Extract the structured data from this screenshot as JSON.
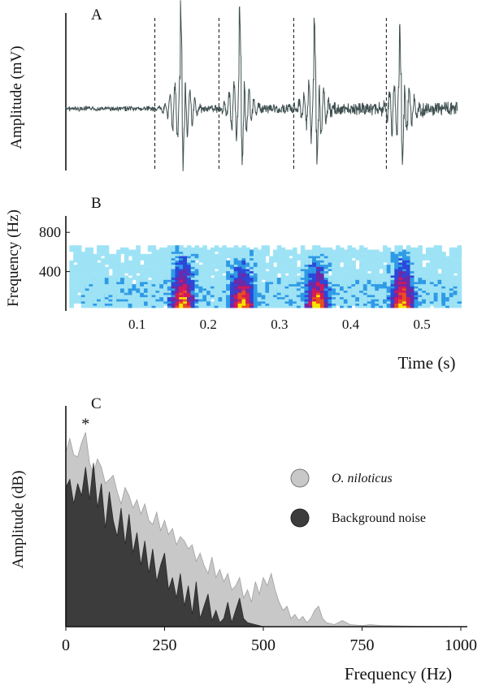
{
  "chart_data": [
    {
      "panel": "A",
      "type": "line",
      "ylabel": "Amplitude  (mV)",
      "x_range": [
        0.0,
        0.55
      ],
      "pulse_times": [
        0.162,
        0.245,
        0.35,
        0.47
      ],
      "dashed_marker_times": [
        0.125,
        0.215,
        0.32,
        0.45
      ],
      "series": [
        {
          "values_description_free": true,
          "color": "#3f4f4f"
        }
      ]
    },
    {
      "panel": "B",
      "type": "heatmap",
      "ylabel": "Frequency (Hz)",
      "yticks": [
        "400",
        "800"
      ],
      "ytick_values": [
        400,
        800
      ],
      "ylim": [
        0,
        1000
      ],
      "xticks": [
        "0.1",
        "0.2",
        "0.3",
        "0.4",
        "0.5"
      ],
      "xtick_values": [
        0.1,
        0.2,
        0.3,
        0.4,
        0.5
      ],
      "xlim": [
        0.0,
        0.55
      ],
      "xlabel": "Time (s)",
      "energy_bursts": [
        {
          "time": 0.162,
          "max_freq": 560
        },
        {
          "time": 0.245,
          "max_freq": 500
        },
        {
          "time": 0.35,
          "max_freq": 520
        },
        {
          "time": 0.47,
          "max_freq": 540
        }
      ]
    },
    {
      "panel": "C",
      "type": "area",
      "ylabel": "Amplitude  (dB)",
      "xlabel": "Frequency (Hz)",
      "xticks": [
        "0",
        "250",
        "500",
        "750",
        "1000"
      ],
      "xtick_values": [
        0,
        250,
        500,
        750,
        1000
      ],
      "xlim": [
        0,
        1000
      ],
      "peak_marker": {
        "label": "*",
        "frequency": 50
      },
      "series": [
        {
          "name": "O. niloticus",
          "color": "#c8c8c8",
          "x": [
            0,
            10,
            20,
            30,
            40,
            50,
            60,
            70,
            80,
            90,
            100,
            110,
            120,
            130,
            140,
            150,
            160,
            170,
            180,
            190,
            200,
            210,
            220,
            230,
            240,
            250,
            260,
            270,
            280,
            290,
            300,
            310,
            320,
            330,
            340,
            350,
            360,
            370,
            380,
            390,
            400,
            410,
            420,
            430,
            440,
            450,
            460,
            470,
            480,
            490,
            500,
            510,
            520,
            530,
            540,
            550,
            560,
            570,
            580,
            590,
            600,
            610,
            620,
            630,
            640,
            650,
            660,
            680,
            700,
            720,
            750,
            770,
            800,
            850,
            900,
            1000
          ],
          "values": [
            85,
            92,
            84,
            83,
            90,
            95,
            80,
            75,
            82,
            78,
            70,
            72,
            74,
            66,
            60,
            68,
            64,
            58,
            62,
            55,
            60,
            52,
            50,
            56,
            47,
            52,
            45,
            48,
            40,
            44,
            42,
            38,
            40,
            32,
            36,
            30,
            26,
            34,
            24,
            28,
            22,
            26,
            18,
            20,
            24,
            14,
            18,
            12,
            22,
            16,
            24,
            20,
            26,
            18,
            12,
            8,
            10,
            4,
            6,
            3,
            5,
            2,
            4,
            8,
            10,
            4,
            2,
            1,
            3,
            1,
            0.5,
            1,
            0.5,
            0.3,
            0.2,
            0
          ]
        },
        {
          "name": "Background noise",
          "color": "#3c3c3c",
          "x": [
            0,
            10,
            20,
            30,
            40,
            50,
            60,
            70,
            80,
            90,
            100,
            110,
            120,
            130,
            140,
            150,
            160,
            170,
            180,
            190,
            200,
            210,
            220,
            230,
            240,
            250,
            260,
            270,
            280,
            290,
            300,
            310,
            320,
            330,
            340,
            350,
            360,
            370,
            380,
            390,
            400,
            410,
            420,
            430,
            440,
            450,
            460,
            480,
            500
          ],
          "values": [
            68,
            72,
            60,
            70,
            64,
            78,
            62,
            80,
            58,
            70,
            48,
            66,
            52,
            44,
            58,
            40,
            55,
            36,
            46,
            30,
            42,
            26,
            38,
            22,
            30,
            36,
            18,
            24,
            14,
            26,
            10,
            20,
            6,
            22,
            4,
            10,
            16,
            3,
            8,
            2,
            4,
            12,
            2,
            8,
            14,
            4,
            2,
            1,
            0
          ]
        }
      ],
      "ylim": [
        0,
        100
      ]
    }
  ],
  "panels": {
    "a": {
      "letter": "A"
    },
    "b": {
      "letter": "B"
    },
    "c": {
      "letter": "C"
    }
  }
}
